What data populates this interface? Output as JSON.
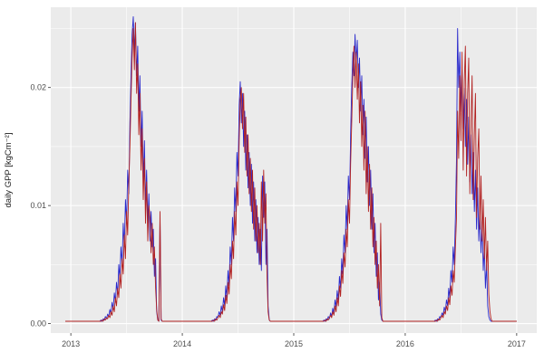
{
  "theme": {
    "background": "#FFFFFF",
    "panel_background": "#EBEBEB",
    "grid_color": "#FFFFFF",
    "tick_mark_color": "#333333",
    "tick_label_color": "#4D4D4D",
    "axis_title_color": "#1A1A1A"
  },
  "chart_data": {
    "type": "line",
    "title": "",
    "xlabel": "",
    "ylabel": "daily GPP [kgCm⁻²]",
    "xlim": [
      2012.82,
      2017.18
    ],
    "ylim": [
      -0.0008,
      0.0268
    ],
    "x_ticks": [
      2013,
      2014,
      2015,
      2016,
      2017
    ],
    "x_tick_labels": [
      "2013",
      "2014",
      "2015",
      "2016",
      "2017"
    ],
    "x_minor_ticks": [
      2013.5,
      2014.5,
      2015.5,
      2016.5
    ],
    "y_ticks": [
      0,
      0.01,
      0.02
    ],
    "y_tick_labels": [
      "0.00",
      "0.01",
      "0.02"
    ],
    "y_minor_ticks": [
      0.005,
      0.015,
      0.025
    ],
    "grid": true,
    "legend": "none",
    "y_value_scale": 0.001,
    "baseline_value": 0.2,
    "x_range": [
      2012.95,
      2017.0
    ],
    "series": [
      {
        "name": "blue series",
        "color": "#2929CC",
        "stroke_width": 0.9,
        "segments": [
          {
            "x_start": 2013.25,
            "x_step": 0.01,
            "values": [
              0.2,
              0.2,
              0.3,
              0.2,
              0.4,
              0.3,
              0.6,
              0.4,
              0.8,
              0.6,
              1.2,
              0.8,
              1.8,
              1.2,
              2.6,
              1.8,
              3.5,
              2.5,
              5.0,
              3.8,
              6.5,
              5.0,
              8.5,
              6.5,
              10.5,
              8.5,
              13.0,
              11.0,
              17.0,
              21.0,
              24.5,
              26.0,
              23.0,
              25.5,
              21.0,
              23.5,
              18.0,
              21.0,
              15.0,
              18.0,
              12.0,
              15.5,
              10.0,
              13.0,
              8.5,
              11.0,
              7.0,
              9.5,
              6.5,
              8.0,
              4.0,
              5.5,
              1.0,
              0.3,
              0.2,
              9.0,
              0.3,
              0.2,
              0.2,
              0.2
            ]
          },
          {
            "x_start": 2014.25,
            "x_step": 0.01,
            "values": [
              0.2,
              0.2,
              0.3,
              0.2,
              0.4,
              0.3,
              0.6,
              0.5,
              1.0,
              0.7,
              1.5,
              1.0,
              2.2,
              1.5,
              3.2,
              2.2,
              4.5,
              3.2,
              6.5,
              5.0,
              9.0,
              7.0,
              11.5,
              9.5,
              14.5,
              12.5,
              18.5,
              20.5,
              17.0,
              19.5,
              15.0,
              18.0,
              13.0,
              16.0,
              11.5,
              14.5,
              10.0,
              13.5,
              8.5,
              12.0,
              7.0,
              10.5,
              6.0,
              9.0,
              5.0,
              8.0,
              4.5,
              12.5,
              9.0,
              12.0,
              5.0,
              8.0,
              1.5,
              0.3,
              0.2,
              0.2,
              0.2,
              0.2,
              0.2,
              0.2
            ]
          },
          {
            "x_start": 2015.25,
            "x_step": 0.01,
            "values": [
              0.2,
              0.2,
              0.3,
              0.2,
              0.4,
              0.3,
              0.6,
              0.4,
              0.9,
              0.6,
              1.3,
              0.9,
              2.0,
              1.4,
              2.8,
              2.0,
              4.0,
              3.0,
              5.5,
              4.2,
              7.5,
              6.0,
              10.0,
              8.0,
              12.5,
              10.5,
              16.0,
              20.0,
              23.0,
              21.0,
              24.5,
              22.0,
              24.0,
              20.0,
              22.5,
              18.0,
              21.0,
              16.0,
              19.0,
              14.0,
              17.5,
              12.0,
              15.0,
              10.0,
              13.0,
              8.0,
              11.0,
              6.0,
              8.5,
              4.0,
              6.0,
              2.0,
              3.5,
              0.8,
              0.3,
              0.2,
              0.2,
              0.2,
              0.2,
              0.2
            ]
          },
          {
            "x_start": 2016.25,
            "x_step": 0.01,
            "values": [
              0.2,
              0.2,
              0.3,
              0.2,
              0.4,
              0.3,
              0.6,
              0.5,
              0.9,
              0.7,
              1.4,
              1.0,
              2.0,
              1.5,
              3.0,
              2.2,
              4.5,
              3.5,
              6.5,
              5.0,
              9.0,
              14.0,
              25.0,
              20.0,
              23.0,
              18.0,
              21.5,
              16.5,
              20.0,
              15.0,
              19.0,
              13.5,
              17.5,
              12.0,
              16.0,
              11.0,
              14.5,
              9.5,
              13.0,
              8.0,
              11.5,
              7.0,
              10.0,
              6.0,
              8.5,
              4.5,
              6.5,
              3.0,
              5.0,
              1.5,
              0.6,
              0.3,
              0.2,
              0.2,
              0.2,
              0.2,
              0.2,
              0.2,
              0.2,
              0.2
            ]
          }
        ]
      },
      {
        "name": "dark red series",
        "color": "#B22222",
        "stroke_width": 0.9,
        "segments": [
          {
            "x_start": 2013.25,
            "x_step": 0.01,
            "values": [
              0.2,
              0.2,
              0.2,
              0.3,
              0.2,
              0.4,
              0.3,
              0.5,
              0.4,
              0.7,
              0.5,
              1.0,
              0.7,
              1.5,
              1.0,
              2.2,
              1.5,
              3.0,
              2.2,
              4.2,
              3.0,
              5.5,
              4.2,
              7.5,
              5.5,
              9.5,
              7.5,
              12.0,
              15.0,
              19.0,
              22.5,
              25.0,
              21.5,
              25.5,
              19.5,
              22.0,
              16.0,
              19.5,
              13.0,
              16.5,
              10.5,
              14.0,
              8.5,
              12.0,
              7.0,
              10.0,
              9.0,
              6.0,
              8.5,
              5.0,
              6.5,
              3.0,
              1.2,
              0.3,
              0.2,
              9.5,
              0.4,
              0.2,
              0.2,
              0.2
            ]
          },
          {
            "x_start": 2014.25,
            "x_step": 0.01,
            "values": [
              0.2,
              0.2,
              0.2,
              0.3,
              0.2,
              0.4,
              0.3,
              0.5,
              0.7,
              0.5,
              1.0,
              0.8,
              1.6,
              1.1,
              2.4,
              1.7,
              3.5,
              2.5,
              5.0,
              3.8,
              7.0,
              5.5,
              9.5,
              7.5,
              12.0,
              10.0,
              15.5,
              19.0,
              20.0,
              16.5,
              19.5,
              14.5,
              17.5,
              12.5,
              16.0,
              11.0,
              14.0,
              9.5,
              13.0,
              8.0,
              11.5,
              7.0,
              10.0,
              6.0,
              8.5,
              5.0,
              12.0,
              7.0,
              13.0,
              8.5,
              11.0,
              4.0,
              1.0,
              0.3,
              0.2,
              0.2,
              0.2,
              0.2,
              0.2,
              0.2
            ]
          },
          {
            "x_start": 2015.25,
            "x_step": 0.01,
            "values": [
              0.2,
              0.2,
              0.2,
              0.3,
              0.2,
              0.4,
              0.3,
              0.5,
              0.7,
              0.5,
              1.0,
              0.7,
              1.5,
              1.0,
              2.2,
              1.5,
              3.2,
              2.3,
              4.5,
              3.4,
              6.0,
              4.8,
              8.0,
              6.5,
              10.5,
              8.5,
              13.5,
              17.0,
              21.0,
              23.5,
              20.0,
              23.0,
              19.0,
              22.0,
              17.0,
              20.5,
              15.0,
              18.5,
              13.0,
              18.0,
              11.0,
              15.0,
              9.5,
              13.5,
              8.0,
              11.5,
              6.5,
              9.0,
              5.0,
              7.0,
              3.0,
              5.0,
              1.5,
              8.5,
              0.5,
              0.2,
              0.2,
              0.2,
              0.2,
              0.2
            ]
          },
          {
            "x_start": 2016.25,
            "x_step": 0.01,
            "values": [
              0.2,
              0.2,
              0.2,
              0.3,
              0.2,
              0.4,
              0.3,
              0.5,
              0.7,
              0.5,
              1.0,
              0.8,
              1.5,
              1.1,
              2.2,
              1.6,
              3.2,
              2.4,
              4.5,
              3.5,
              6.5,
              9.0,
              18.0,
              14.0,
              21.0,
              15.5,
              23.0,
              13.0,
              20.5,
              23.5,
              12.5,
              19.5,
              22.5,
              11.0,
              17.0,
              21.0,
              10.5,
              16.0,
              19.5,
              9.0,
              14.0,
              16.5,
              8.0,
              12.5,
              7.0,
              10.5,
              5.5,
              9.0,
              4.5,
              7.0,
              2.5,
              1.0,
              0.4,
              0.2,
              0.2,
              0.2,
              0.2,
              0.2,
              0.2,
              0.2
            ]
          }
        ]
      }
    ]
  }
}
